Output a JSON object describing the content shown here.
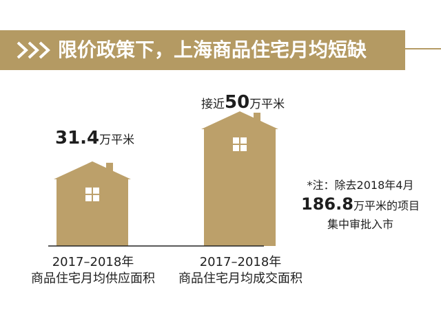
{
  "title": "限价政策下，上海商品住宅月均短缺",
  "colors": {
    "gold": "#b49a63",
    "house": "#bca06a",
    "baseline": "#222222",
    "text": "#1e1e1e"
  },
  "chart_data": {
    "type": "bar",
    "mark": "house-shaped bars",
    "title": "限价政策下，上海商品住宅月均短缺",
    "categories": [
      "2017–2018年 商品住宅月均供应面积",
      "2017–2018年 商品住宅月均成交面积"
    ],
    "values": [
      31.4,
      50
    ],
    "unit": "万平米",
    "data_labels": [
      {
        "prefix": "",
        "number": "31.4",
        "unit": "万平米"
      },
      {
        "prefix": "接近",
        "number": "50",
        "unit": "万平米"
      }
    ],
    "category_labels": [
      {
        "line1": "2017–2018年",
        "line2": "商品住宅月均供应面积"
      },
      {
        "line1": "2017–2018年",
        "line2": "商品住宅月均成交面积"
      }
    ],
    "annotation": {
      "line1": "*注：除去2018年4月",
      "number": "186.8",
      "line2_suffix": "万平米的项目",
      "line3": "集中审批入市"
    },
    "ylim": [
      0,
      50
    ],
    "grid": false,
    "legend": "none"
  }
}
